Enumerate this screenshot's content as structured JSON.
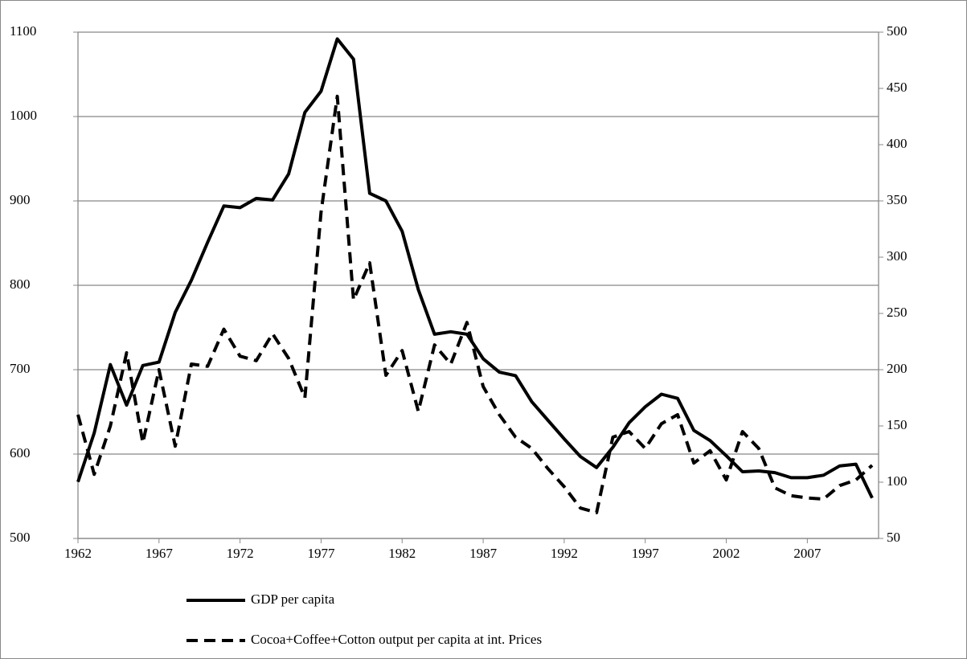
{
  "chart_data": {
    "type": "line",
    "x": [
      1962,
      1963,
      1964,
      1965,
      1966,
      1967,
      1968,
      1969,
      1970,
      1971,
      1972,
      1973,
      1974,
      1975,
      1976,
      1977,
      1978,
      1979,
      1980,
      1981,
      1982,
      1983,
      1984,
      1985,
      1986,
      1987,
      1988,
      1989,
      1990,
      1991,
      1992,
      1993,
      1994,
      1995,
      1996,
      1997,
      1998,
      1999,
      2000,
      2001,
      2002,
      2003,
      2004,
      2005,
      2006,
      2007,
      2008,
      2009,
      2010,
      2011
    ],
    "xlim": [
      1962,
      2011
    ],
    "xticks": [
      1962,
      1967,
      1972,
      1977,
      1982,
      1987,
      1992,
      1997,
      2002,
      2007
    ],
    "ylim": [
      500,
      1100
    ],
    "yticks": [
      500,
      600,
      700,
      800,
      900,
      1000,
      1100
    ],
    "y2lim": [
      50,
      500
    ],
    "y2ticks": [
      50,
      100,
      150,
      200,
      250,
      300,
      350,
      400,
      450,
      500
    ],
    "grid": true,
    "series": [
      {
        "name": "GDP per capita",
        "color": "#000000",
        "dash": "solid",
        "values": [
          567,
          625,
          706,
          658,
          705,
          709,
          768,
          806,
          851,
          894,
          892,
          903,
          901,
          932,
          1005,
          1030,
          1092,
          1068,
          909,
          900,
          864,
          795,
          742,
          745,
          742,
          713,
          697,
          693,
          662,
          640,
          618,
          597,
          584,
          608,
          637,
          656,
          671,
          666,
          628,
          616,
          598,
          579,
          580,
          578,
          572,
          572,
          575,
          586,
          588,
          548
        ]
      },
      {
        "name": "Cocoa+Coffee+Cotton output per capita at int. Prices",
        "color": "#000000",
        "dash": "dashed",
        "axis": "y2",
        "values": [
          160,
          107,
          150,
          215,
          135,
          200,
          132,
          205,
          203,
          236,
          212,
          208,
          232,
          210,
          175,
          340,
          443,
          262,
          295,
          195,
          217,
          163,
          222,
          205,
          242,
          185,
          160,
          140,
          130,
          112,
          96,
          77,
          73,
          140,
          145,
          130,
          152,
          160,
          117,
          128,
          102,
          145,
          130,
          95,
          88,
          86,
          85,
          97,
          102,
          115
        ]
      }
    ]
  }
}
